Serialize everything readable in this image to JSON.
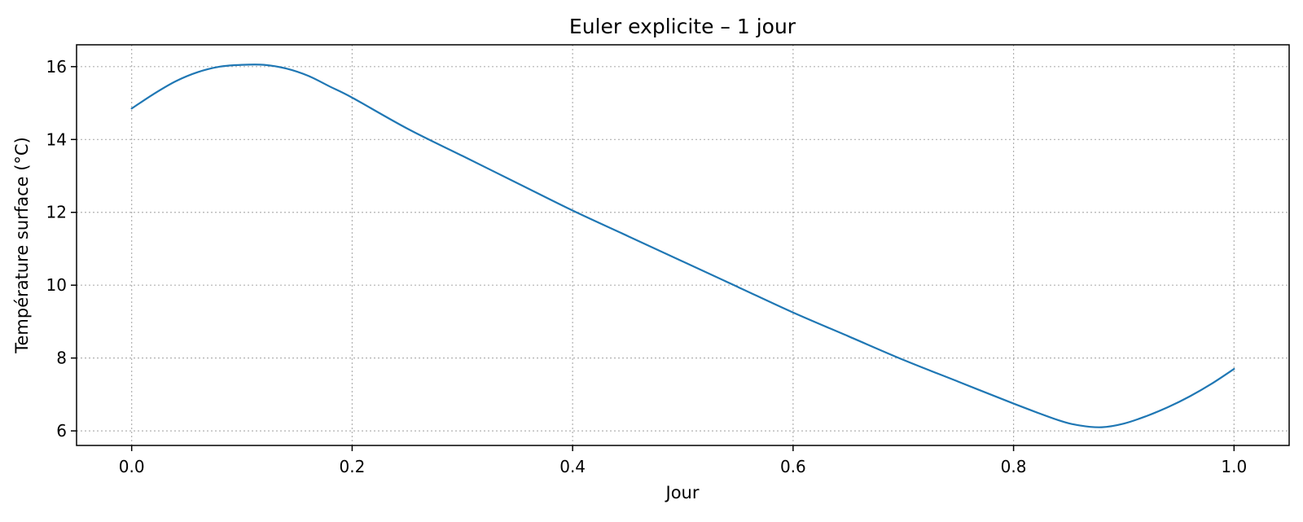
{
  "chart_data": {
    "type": "line",
    "title": "Euler explicite – 1 jour",
    "xlabel": "Jour",
    "ylabel": "Température surface (°C)",
    "xlim": [
      -0.05,
      1.05
    ],
    "ylim": [
      5.6,
      16.6
    ],
    "grid": true,
    "x_ticks": [
      0.0,
      0.2,
      0.4,
      0.6,
      0.8,
      1.0
    ],
    "x_tick_labels": [
      "0.0",
      "0.2",
      "0.4",
      "0.6",
      "0.8",
      "1.0"
    ],
    "y_ticks": [
      6,
      8,
      10,
      12,
      14,
      16
    ],
    "y_tick_labels": [
      "6",
      "8",
      "10",
      "12",
      "14",
      "16"
    ],
    "series_color": "#1f77b4",
    "series": [
      {
        "x": [
          0.0,
          0.02,
          0.04,
          0.06,
          0.08,
          0.1,
          0.12,
          0.14,
          0.16,
          0.18,
          0.2,
          0.25,
          0.3,
          0.35,
          0.4,
          0.45,
          0.5,
          0.55,
          0.6,
          0.65,
          0.7,
          0.75,
          0.8,
          0.84,
          0.86,
          0.88,
          0.9,
          0.92,
          0.94,
          0.96,
          0.98,
          1.0
        ],
        "y": [
          14.85,
          15.25,
          15.6,
          15.85,
          16.0,
          16.05,
          16.05,
          15.95,
          15.75,
          15.45,
          15.15,
          14.3,
          13.55,
          12.8,
          12.05,
          11.35,
          10.65,
          9.95,
          9.25,
          8.6,
          7.95,
          7.35,
          6.75,
          6.3,
          6.15,
          6.1,
          6.2,
          6.4,
          6.65,
          6.95,
          7.3,
          7.7
        ]
      }
    ]
  }
}
